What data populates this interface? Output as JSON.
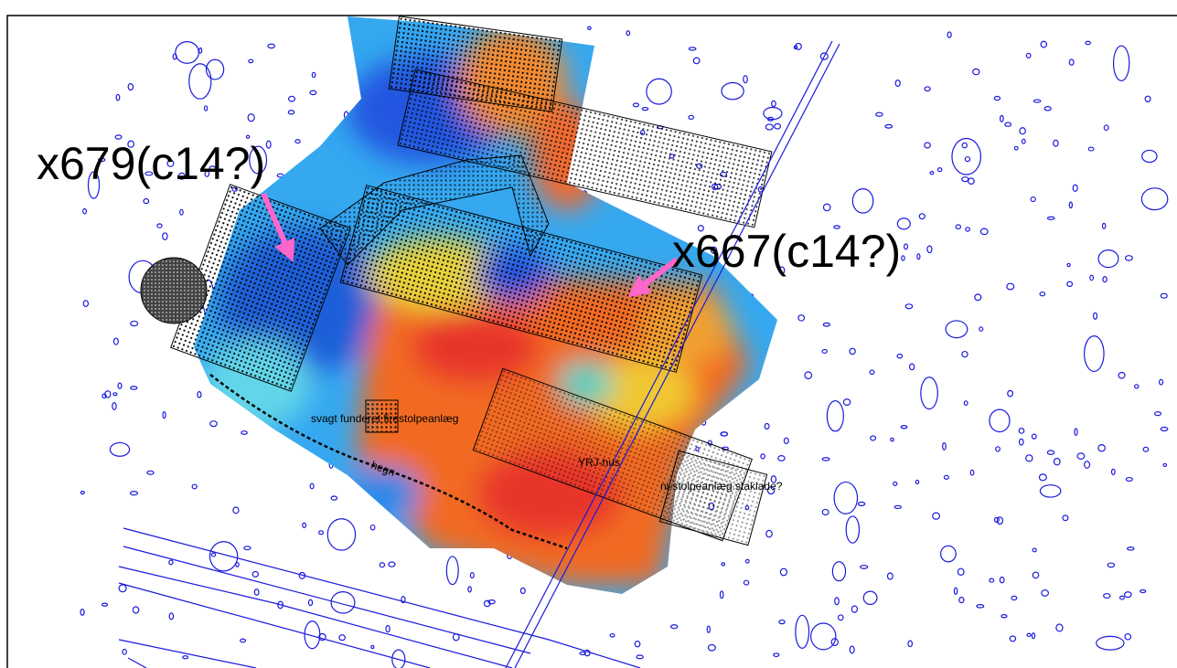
{
  "annotations": [
    "x679(c14?)",
    "x667(c14?)"
  ],
  "features": [
    "svagt funderet firestolpeanlæg",
    "YRJ-hus",
    "ni-stolpeanlæg staklade?",
    "hegn"
  ]
}
